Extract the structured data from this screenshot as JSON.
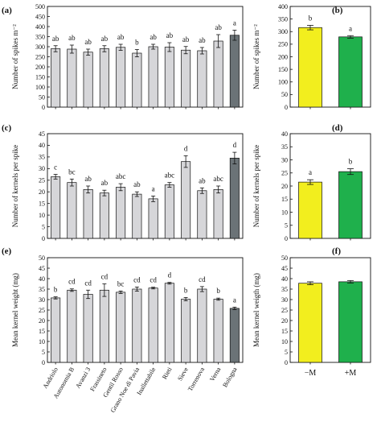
{
  "chart_data": [
    {
      "panel": "(a)",
      "type": "bar",
      "ylabel": "Number of spikes m⁻²",
      "ylim": [
        0,
        500
      ],
      "yticks": [
        0,
        50,
        100,
        150,
        200,
        250,
        300,
        350,
        400,
        450,
        500
      ],
      "categories": [
        "Andriolo",
        "Autonomia B",
        "Avanzi 3",
        "Frassineto",
        "Gentil Rosso",
        "Grano Noe di Pavia",
        "Inallettabile",
        "Rieti",
        "Sieve",
        "Torrenova",
        "Verna",
        "Bologna"
      ],
      "values": [
        290,
        288,
        273,
        290,
        297,
        268,
        300,
        298,
        283,
        280,
        328,
        357
      ],
      "errors": [
        15,
        20,
        15,
        15,
        15,
        18,
        12,
        22,
        18,
        16,
        32,
        25
      ],
      "letters": [
        "ab",
        "ab",
        "ab",
        "ab",
        "ab",
        "b",
        "ab",
        "ab",
        "ab",
        "ab",
        "ab",
        "a"
      ],
      "colors": [
        "#d6d6d9",
        "#d6d6d9",
        "#d6d6d9",
        "#d6d6d9",
        "#d6d6d9",
        "#d6d6d9",
        "#d6d6d9",
        "#d6d6d9",
        "#d6d6d9",
        "#d6d6d9",
        "#d6d6d9",
        "#6b7377"
      ]
    },
    {
      "panel": "(b)",
      "type": "bar",
      "ylabel": "Number of spikes m⁻²",
      "ylim": [
        0,
        400
      ],
      "yticks": [
        0,
        50,
        100,
        150,
        200,
        250,
        300,
        350,
        400
      ],
      "categories": [
        "−M",
        "+M"
      ],
      "values": [
        316,
        279
      ],
      "errors": [
        9,
        5
      ],
      "letters": [
        "b",
        "a"
      ],
      "colors": [
        "#f2ee1e",
        "#1fb04c"
      ]
    },
    {
      "panel": "(c)",
      "type": "bar",
      "ylabel": "Number of kernels per spike",
      "ylim": [
        0,
        45
      ],
      "yticks": [
        0,
        5,
        10,
        15,
        20,
        25,
        30,
        35,
        40,
        45
      ],
      "categories": [
        "Andriolo",
        "Autonomia B",
        "Avanzi 3",
        "Frassineto",
        "Gentil Rosso",
        "Grano Noe di Pavia",
        "Inallettabile",
        "Rieti",
        "Sieve",
        "Torrenova",
        "Verna",
        "Bologna"
      ],
      "values": [
        26.5,
        24,
        21,
        19.5,
        22,
        19,
        17,
        23,
        33,
        20.5,
        21,
        34.5
      ],
      "errors": [
        1.0,
        1.5,
        1.5,
        1.2,
        1.5,
        1.0,
        1.2,
        1.0,
        2.5,
        1.2,
        1.5,
        2.5
      ],
      "letters": [
        "c",
        "bc",
        "ab",
        "ab",
        "abc",
        "ab",
        "a",
        "abc",
        "d",
        "ab",
        "abc",
        "d"
      ],
      "colors": [
        "#d6d6d9",
        "#d6d6d9",
        "#d6d6d9",
        "#d6d6d9",
        "#d6d6d9",
        "#d6d6d9",
        "#d6d6d9",
        "#d6d6d9",
        "#d6d6d9",
        "#d6d6d9",
        "#d6d6d9",
        "#6b7377"
      ]
    },
    {
      "panel": "(d)",
      "type": "bar",
      "ylabel": "Number of kernels per spike",
      "ylim": [
        0,
        40
      ],
      "yticks": [
        0,
        5,
        10,
        15,
        20,
        25,
        30,
        35,
        40
      ],
      "categories": [
        "−M",
        "+M"
      ],
      "values": [
        21.5,
        25.5
      ],
      "errors": [
        0.9,
        1.1
      ],
      "letters": [
        "a",
        "b"
      ],
      "colors": [
        "#f2ee1e",
        "#1fb04c"
      ]
    },
    {
      "panel": "(e)",
      "type": "bar",
      "ylabel": "Mean kernel weight (mg)",
      "ylim": [
        0,
        50
      ],
      "yticks": [
        0,
        5,
        10,
        15,
        20,
        25,
        30,
        35,
        40,
        45,
        50
      ],
      "categories": [
        "Andriolo",
        "Autonomia B",
        "Avanzi 3",
        "Frassineto",
        "Gentil Rosso",
        "Grano Noe di Pavia",
        "Inallettabile",
        "Rieti",
        "Sieve",
        "Torrenova",
        "Verna",
        "Bologna"
      ],
      "values": [
        30.8,
        34.5,
        32.5,
        34.5,
        33.5,
        35,
        35.5,
        37.8,
        30.2,
        35,
        30.2,
        25.8
      ],
      "errors": [
        0.5,
        0.6,
        2.0,
        3.0,
        0.6,
        1.0,
        0.4,
        0.4,
        0.8,
        1.2,
        0.5,
        0.6
      ],
      "letters": [
        "b",
        "cd",
        "cd",
        "cd",
        "bc",
        "cd",
        "cd",
        "d",
        "b",
        "cd",
        "b",
        "a"
      ],
      "colors": [
        "#d6d6d9",
        "#d6d6d9",
        "#d6d6d9",
        "#d6d6d9",
        "#d6d6d9",
        "#d6d6d9",
        "#d6d6d9",
        "#d6d6d9",
        "#d6d6d9",
        "#d6d6d9",
        "#d6d6d9",
        "#6b7377"
      ]
    },
    {
      "panel": "(f)",
      "type": "bar",
      "ylabel": "Mean kernel weigth (mg)",
      "ylim": [
        0,
        50
      ],
      "yticks": [
        0,
        5,
        10,
        15,
        20,
        25,
        30,
        35,
        40,
        45,
        50
      ],
      "categories": [
        "−M",
        "+M"
      ],
      "values": [
        37.8,
        38.5
      ],
      "errors": [
        0.7,
        0.6
      ],
      "letters": [],
      "colors": [
        "#f2ee1e",
        "#1fb04c"
      ]
    }
  ]
}
